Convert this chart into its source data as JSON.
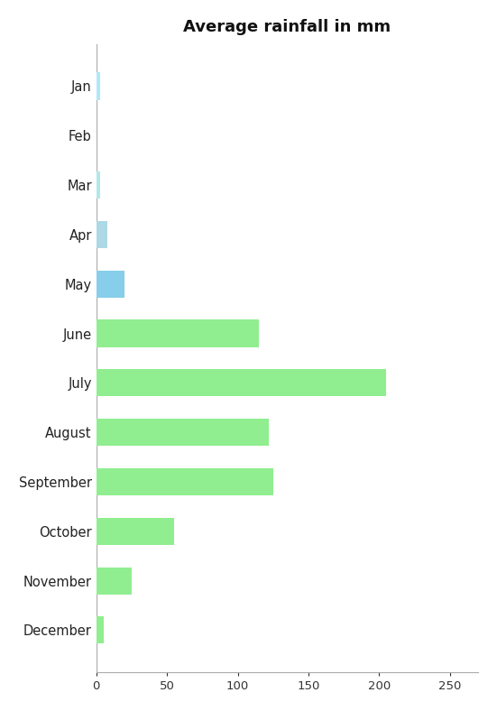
{
  "months": [
    "December",
    "November",
    "October",
    "September",
    "August",
    "July",
    "June",
    "May",
    "Apr",
    "Mar",
    "Feb",
    "Jan"
  ],
  "values": [
    5,
    25,
    55,
    125,
    122,
    205,
    115,
    20,
    8,
    3,
    0,
    3
  ],
  "bar_colors": [
    "#90ee90",
    "#90ee90",
    "#90ee90",
    "#90ee90",
    "#90ee90",
    "#90ee90",
    "#90ee90",
    "#87ceeb",
    "#add8e6",
    "#b0e8e8",
    "#ffffff",
    "#b0e8f8"
  ],
  "title": "Average rainfall in mm",
  "title_fontsize": 13,
  "title_fontweight": "bold",
  "xlim": [
    0,
    270
  ],
  "xticks": [
    0,
    50,
    100,
    150,
    200,
    250
  ],
  "bar_height": 0.55,
  "figsize": [
    5.51,
    7.88
  ],
  "dpi": 100
}
